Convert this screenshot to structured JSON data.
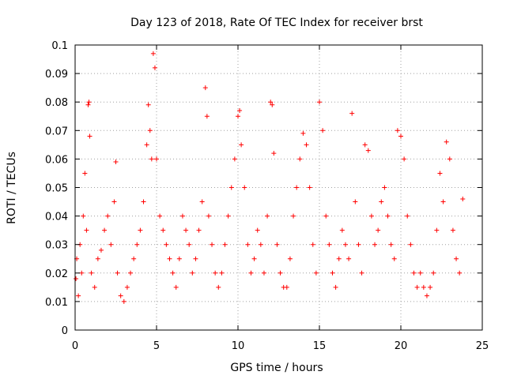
{
  "chart_data": {
    "type": "scatter",
    "title": "Day 123 of 2018, Rate Of TEC Index for receiver brst",
    "xlabel": "GPS time / hours",
    "ylabel": "ROTI / TECUs",
    "xlim": [
      0,
      25
    ],
    "ylim": [
      0,
      0.1
    ],
    "xticks": [
      0,
      5,
      10,
      15,
      20,
      25
    ],
    "xtick_labels": [
      "0",
      "5",
      "10",
      "15",
      "20",
      "25"
    ],
    "yticks": [
      0,
      0.01,
      0.02,
      0.03,
      0.04,
      0.05,
      0.06,
      0.07,
      0.08,
      0.09,
      0.1
    ],
    "ytick_labels": [
      "0",
      "0.01",
      "0.02",
      "0.03",
      "0.04",
      "0.05",
      "0.06",
      "0.07",
      "0.08",
      "0.09",
      "0.1"
    ],
    "grid": true,
    "marker": "plus",
    "color": "#ff0000",
    "series": [
      {
        "x": [
          0.05,
          0.1,
          0.2,
          0.3,
          0.4,
          0.5,
          0.6,
          0.7,
          0.8,
          0.85,
          0.9,
          1.0,
          1.2,
          1.4,
          1.6,
          1.8,
          2.0,
          2.2,
          2.4,
          2.5,
          2.6,
          2.8,
          3.0,
          3.2,
          3.4,
          3.6,
          3.8,
          4.0,
          4.2,
          4.4,
          4.5,
          4.6,
          4.7,
          4.8,
          4.9,
          5.0,
          5.2,
          5.4,
          5.6,
          5.8,
          6.0,
          6.2,
          6.4,
          6.6,
          6.8,
          7.0,
          7.2,
          7.4,
          7.6,
          7.8,
          8.0,
          8.1,
          8.2,
          8.4,
          8.6,
          8.8,
          9.0,
          9.2,
          9.4,
          9.6,
          9.8,
          10.0,
          10.1,
          10.2,
          10.4,
          10.6,
          10.8,
          11.0,
          11.2,
          11.4,
          11.6,
          11.8,
          12.0,
          12.1,
          12.2,
          12.4,
          12.6,
          12.8,
          13.0,
          13.2,
          13.4,
          13.6,
          13.8,
          14.0,
          14.2,
          14.4,
          14.6,
          14.8,
          15.0,
          15.2,
          15.4,
          15.6,
          15.8,
          16.0,
          16.2,
          16.4,
          16.6,
          16.8,
          17.0,
          17.2,
          17.4,
          17.6,
          17.8,
          18.0,
          18.2,
          18.4,
          18.6,
          18.8,
          19.0,
          19.2,
          19.4,
          19.6,
          19.8,
          20.0,
          20.2,
          20.4,
          20.6,
          20.8,
          21.0,
          21.2,
          21.4,
          21.6,
          21.8,
          22.0,
          22.2,
          22.4,
          22.6,
          22.8,
          23.0,
          23.2,
          23.4,
          23.6,
          23.8
        ],
        "y": [
          0.018,
          0.025,
          0.012,
          0.03,
          0.02,
          0.04,
          0.055,
          0.035,
          0.079,
          0.08,
          0.068,
          0.02,
          0.015,
          0.025,
          0.028,
          0.035,
          0.04,
          0.03,
          0.045,
          0.059,
          0.02,
          0.012,
          0.01,
          0.015,
          0.02,
          0.025,
          0.03,
          0.035,
          0.045,
          0.065,
          0.079,
          0.07,
          0.06,
          0.097,
          0.092,
          0.06,
          0.04,
          0.035,
          0.03,
          0.025,
          0.02,
          0.015,
          0.025,
          0.04,
          0.035,
          0.03,
          0.02,
          0.025,
          0.035,
          0.045,
          0.085,
          0.075,
          0.04,
          0.03,
          0.02,
          0.015,
          0.02,
          0.03,
          0.04,
          0.05,
          0.06,
          0.075,
          0.077,
          0.065,
          0.05,
          0.03,
          0.02,
          0.025,
          0.035,
          0.03,
          0.02,
          0.04,
          0.08,
          0.079,
          0.062,
          0.03,
          0.02,
          0.015,
          0.015,
          0.025,
          0.04,
          0.05,
          0.06,
          0.069,
          0.065,
          0.05,
          0.03,
          0.02,
          0.08,
          0.07,
          0.04,
          0.03,
          0.02,
          0.015,
          0.025,
          0.035,
          0.03,
          0.025,
          0.076,
          0.045,
          0.03,
          0.02,
          0.065,
          0.063,
          0.04,
          0.03,
          0.035,
          0.045,
          0.05,
          0.04,
          0.03,
          0.025,
          0.07,
          0.068,
          0.06,
          0.04,
          0.03,
          0.02,
          0.015,
          0.02,
          0.015,
          0.012,
          0.015,
          0.02,
          0.035,
          0.055,
          0.045,
          0.066,
          0.06,
          0.035,
          0.025,
          0.02,
          0.046
        ]
      }
    ]
  }
}
